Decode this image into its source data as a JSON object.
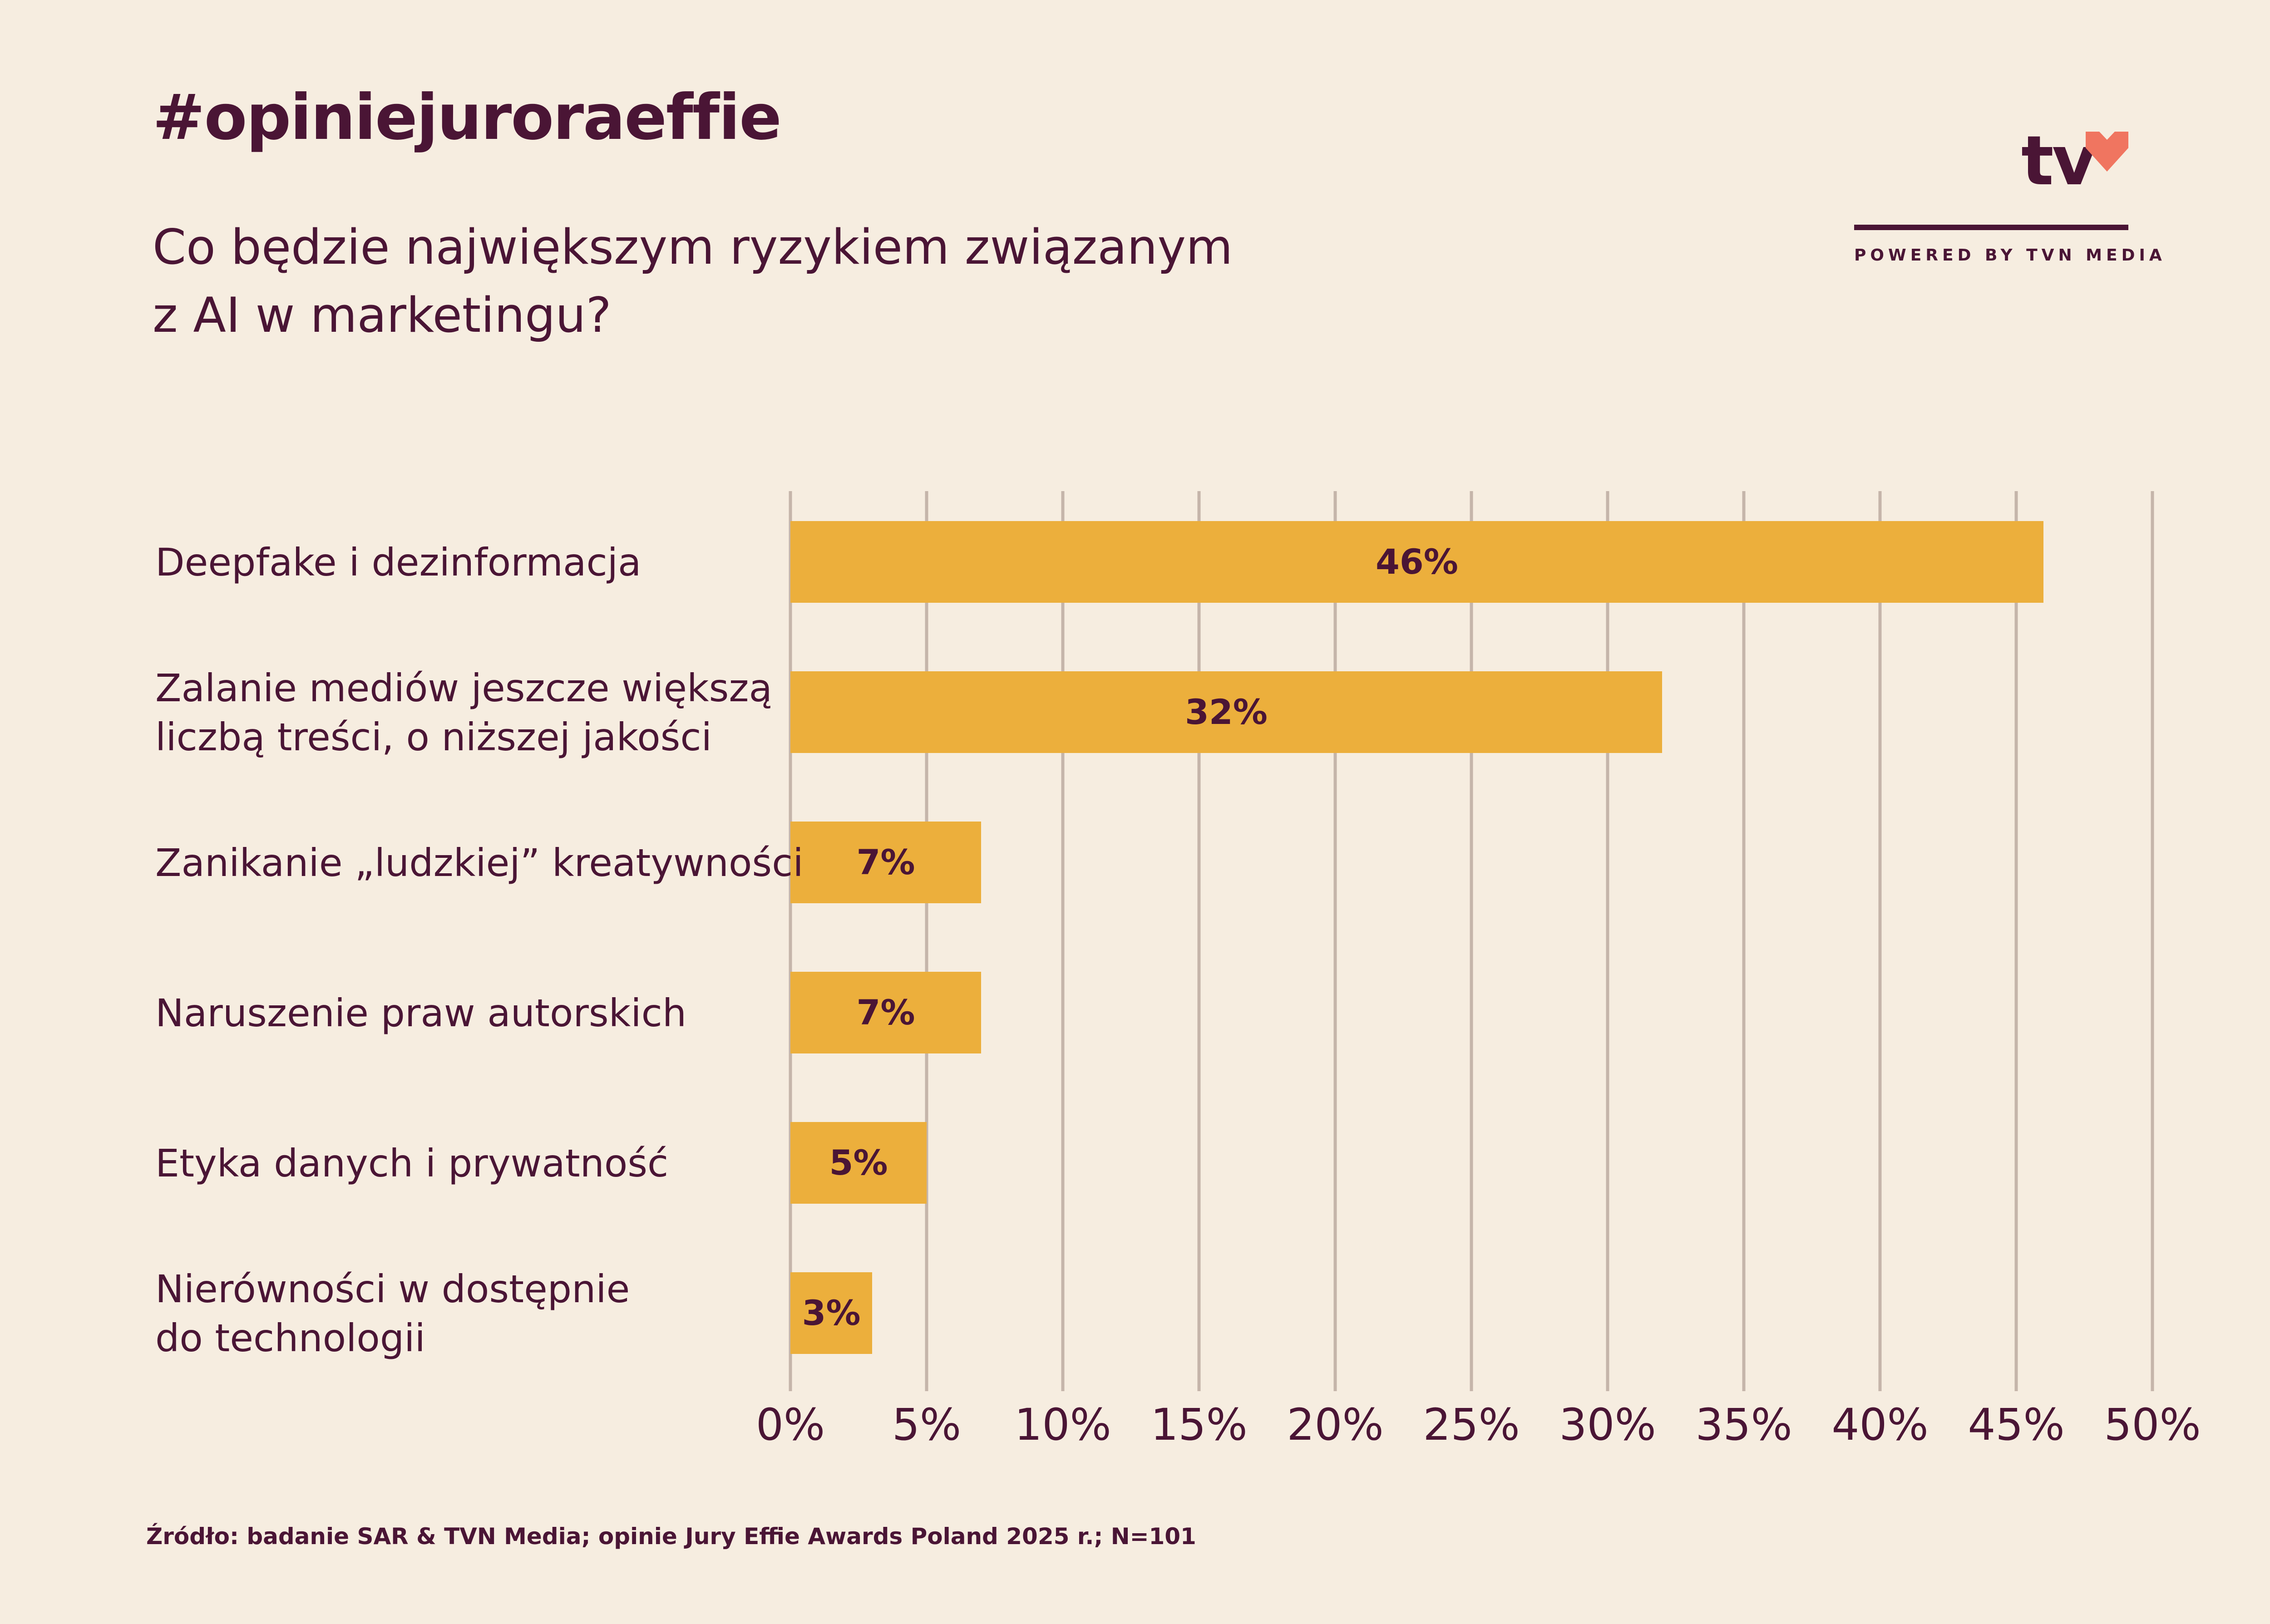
{
  "header": {
    "hashtag": "#opiniejuroraeffie",
    "question_line1": "Co będzie największym ryzykiem związanym",
    "question_line2": "z AI w marketingu?"
  },
  "logo": {
    "mark": "tv",
    "icon": "heart-icon",
    "tagline": "POWERED BY TVN MEDIA",
    "heart_color": "#f07560"
  },
  "chart_data": {
    "type": "bar",
    "orientation": "horizontal",
    "categories": [
      [
        "Deepfake i dezinformacja"
      ],
      [
        "Zalanie mediów jeszcze większą",
        "liczbą treści, o niższej jakości"
      ],
      [
        "Zanikanie „ludzkiej” kreatywności"
      ],
      [
        "Naruszenie praw autorskich"
      ],
      [
        "Etyka danych i prywatność"
      ],
      [
        "Nierówności w dostępnie",
        "do technologii"
      ]
    ],
    "values": [
      46,
      32,
      7,
      7,
      5,
      3
    ],
    "data_labels": [
      "46%",
      "32%",
      "7%",
      "7%",
      "5%",
      "3%"
    ],
    "xlim": [
      0,
      50
    ],
    "x_ticks": [
      0,
      5,
      10,
      15,
      20,
      25,
      30,
      35,
      40,
      45,
      50
    ],
    "x_tick_labels": [
      "0%",
      "5%",
      "10%",
      "15%",
      "20%",
      "25%",
      "30%",
      "35%",
      "40%",
      "45%",
      "50%"
    ],
    "grid": "vertical",
    "bar_color": "#ecaf3c",
    "grid_color": "#c5b5aa",
    "text_color": "#4a1535"
  },
  "footer": {
    "source": "Źródło: badanie SAR & TVN Media; opinie Jury Effie Awards Poland 2025 r.;  N=101"
  }
}
